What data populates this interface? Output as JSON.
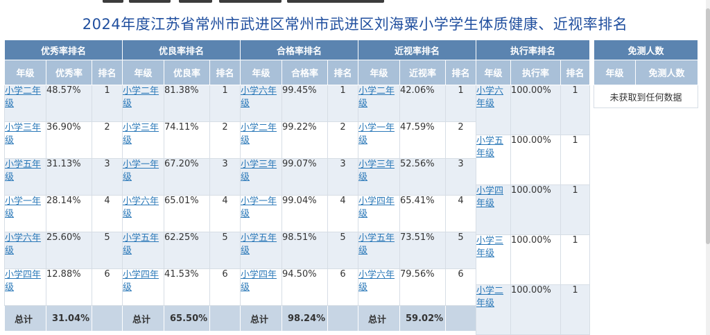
{
  "page_title": "2024年度江苏省常州市武进区常州市武进区刘海粟小学学生体质健康、近视率排名",
  "excellent": {
    "title": "优秀率排名",
    "headers": [
      "年级",
      "优秀率",
      "排名"
    ],
    "rows": [
      {
        "grade": "小学二年级",
        "value": "48.57%",
        "rank": "1"
      },
      {
        "grade": "小学三年级",
        "value": "36.90%",
        "rank": "2"
      },
      {
        "grade": "小学五年级",
        "value": "31.13%",
        "rank": "3"
      },
      {
        "grade": "小学一年级",
        "value": "28.14%",
        "rank": "4"
      },
      {
        "grade": "小学六年级",
        "value": "25.60%",
        "rank": "5"
      },
      {
        "grade": "小学四年级",
        "value": "12.88%",
        "rank": "6"
      }
    ],
    "total_label": "总计",
    "total_value": "31.04%"
  },
  "good": {
    "title": "优良率排名",
    "headers": [
      "年级",
      "优良率",
      "排名"
    ],
    "rows": [
      {
        "grade": "小学二年级",
        "value": "81.38%",
        "rank": "1"
      },
      {
        "grade": "小学三年级",
        "value": "74.11%",
        "rank": "2"
      },
      {
        "grade": "小学一年级",
        "value": "67.20%",
        "rank": "3"
      },
      {
        "grade": "小学六年级",
        "value": "65.01%",
        "rank": "4"
      },
      {
        "grade": "小学五年级",
        "value": "62.25%",
        "rank": "5"
      },
      {
        "grade": "小学四年级",
        "value": "41.53%",
        "rank": "6"
      }
    ],
    "total_label": "总计",
    "total_value": "65.50%"
  },
  "pass": {
    "title": "合格率排名",
    "headers": [
      "年级",
      "合格率",
      "排名"
    ],
    "rows": [
      {
        "grade": "小学六年级",
        "value": "99.45%",
        "rank": "1"
      },
      {
        "grade": "小学二年级",
        "value": "99.22%",
        "rank": "2"
      },
      {
        "grade": "小学三年级",
        "value": "99.07%",
        "rank": "3"
      },
      {
        "grade": "小学一年级",
        "value": "99.04%",
        "rank": "4"
      },
      {
        "grade": "小学五年级",
        "value": "98.51%",
        "rank": "5"
      },
      {
        "grade": "小学四年级",
        "value": "94.50%",
        "rank": "6"
      }
    ],
    "total_label": "总计",
    "total_value": "98.24%"
  },
  "myopia": {
    "title": "近视率排名",
    "headers": [
      "年级",
      "近视率",
      "排名"
    ],
    "rows": [
      {
        "grade": "小学二年级",
        "value": "42.06%",
        "rank": "1"
      },
      {
        "grade": "小学一年级",
        "value": "47.59%",
        "rank": "2"
      },
      {
        "grade": "小学三年级",
        "value": "52.56%",
        "rank": "3"
      },
      {
        "grade": "小学四年级",
        "value": "65.41%",
        "rank": "4"
      },
      {
        "grade": "小学五年级",
        "value": "73.51%",
        "rank": "5"
      },
      {
        "grade": "小学六年级",
        "value": "79.56%",
        "rank": "6"
      }
    ],
    "total_label": "总计",
    "total_value": "59.02%"
  },
  "execution": {
    "title": "执行率排名",
    "headers": [
      "年级",
      "执行率",
      "排名"
    ],
    "rows": [
      {
        "grade": "小学六年级",
        "value": "100.00%",
        "rank": "1"
      },
      {
        "grade": "小学五年级",
        "value": "100.00%",
        "rank": "1"
      },
      {
        "grade": "小学四年级",
        "value": "100.00%",
        "rank": "1"
      },
      {
        "grade": "小学三年级",
        "value": "100.00%",
        "rank": "1"
      },
      {
        "grade": "小学二年级",
        "value": "100.00%",
        "rank": "1"
      }
    ]
  },
  "exempt": {
    "title": "免测人数",
    "headers": [
      "年级",
      "免测人数"
    ],
    "empty_text": "未获取到任何数据"
  },
  "colors": {
    "title": "#1f4e9e",
    "header_dark": "#5b84b0",
    "header_light": "#a9c0d8",
    "row_alt": "#e8eef5",
    "total_row": "#c7d5e4",
    "link": "#2a78b8"
  }
}
